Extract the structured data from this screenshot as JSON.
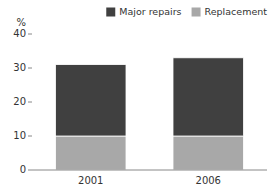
{
  "chart_data": {
    "type": "bar",
    "stacked": true,
    "categories": [
      "2001",
      "2006"
    ],
    "series": [
      {
        "name": "Replacement",
        "color": "#a8a8a8",
        "values": [
          10,
          10
        ]
      },
      {
        "name": "Major repairs",
        "color": "#404040",
        "values": [
          21,
          23
        ]
      }
    ],
    "y_label": "%",
    "ylim": [
      0,
      40
    ],
    "yticks": [
      0,
      10,
      20,
      30,
      40
    ],
    "grid": false,
    "legend": "top-right"
  }
}
